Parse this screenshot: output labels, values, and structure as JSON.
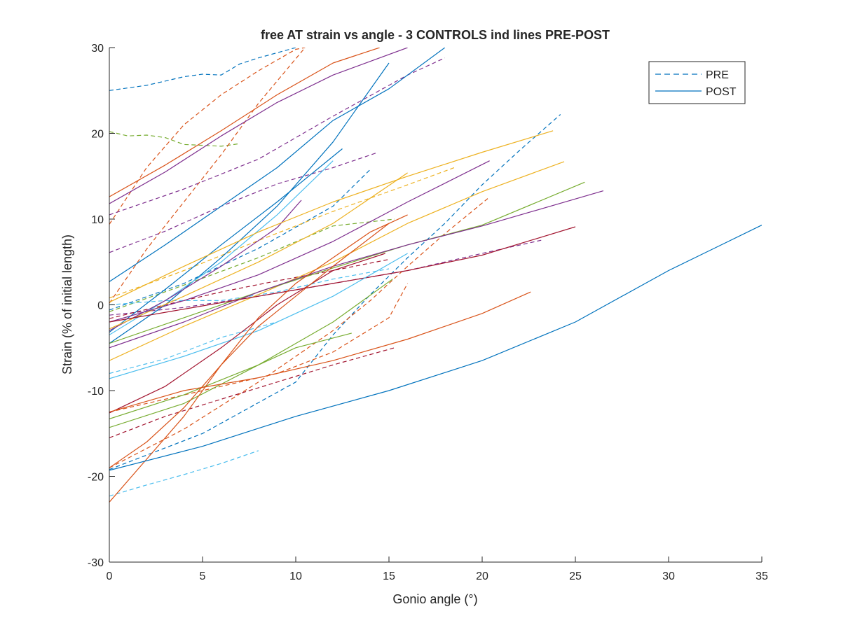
{
  "chart_data": {
    "type": "line",
    "title": "free AT strain vs angle - 3 CONTROLS ind lines PRE-POST",
    "xlabel": "Gonio angle (°)",
    "ylabel": "Strain (% of initial length)",
    "xlim": [
      0,
      35
    ],
    "ylim": [
      -30,
      30
    ],
    "xticks": [
      "0",
      "5",
      "10",
      "15",
      "20",
      "25",
      "30",
      "35"
    ],
    "yticks": [
      "-30",
      "-20",
      "-10",
      "0",
      "10",
      "20",
      "30"
    ],
    "grid": false,
    "legend": {
      "placement": "top-right",
      "entries": [
        {
          "label": "PRE",
          "style": "dashed",
          "color": "#0072BD"
        },
        {
          "label": "POST",
          "style": "solid",
          "color": "#0072BD"
        }
      ]
    },
    "series": [
      {
        "group": "PRE",
        "color": "#0072BD",
        "x": [
          0,
          1,
          2,
          3,
          4,
          5,
          6,
          7,
          8,
          9,
          10
        ],
        "y": [
          25,
          25.3,
          25.6,
          26.1,
          26.6,
          26.9,
          26.8,
          28.1,
          28.8,
          29.4,
          30
        ]
      },
      {
        "group": "PRE",
        "color": "#77AC30",
        "x": [
          0,
          1,
          2,
          3,
          4,
          5,
          6,
          7
        ],
        "y": [
          20.2,
          19.7,
          19.8,
          19.5,
          18.7,
          18.6,
          18.5,
          18.8
        ]
      },
      {
        "group": "PRE",
        "color": "#D95319",
        "x": [
          0,
          2,
          4,
          6,
          8,
          10,
          10.5
        ],
        "y": [
          9.4,
          16,
          21,
          24.5,
          27.3,
          29.8,
          30
        ]
      },
      {
        "group": "PRE",
        "color": "#D95319",
        "x": [
          0,
          2,
          4,
          6,
          8,
          10.5
        ],
        "y": [
          0.2,
          6.5,
          12,
          17.5,
          23.5,
          30
        ]
      },
      {
        "group": "PRE",
        "color": "#7E2F8E",
        "x": [
          0,
          4,
          8,
          12,
          16,
          18
        ],
        "y": [
          10.5,
          13.5,
          17,
          22,
          26.8,
          28.8
        ]
      },
      {
        "group": "PRE",
        "color": "#7E2F8E",
        "x": [
          0,
          3,
          6,
          9,
          12,
          14.3
        ],
        "y": [
          6.1,
          8.6,
          11.5,
          14.1,
          16,
          17.7
        ]
      },
      {
        "group": "PRE",
        "color": "#0072BD",
        "x": [
          0,
          4,
          8,
          12,
          14
        ],
        "y": [
          -0.6,
          2.5,
          6.6,
          11.5,
          15.8
        ]
      },
      {
        "group": "PRE",
        "color": "#0072BD",
        "x": [
          0,
          5,
          10,
          12,
          14,
          16,
          18,
          20,
          22,
          24.2
        ],
        "y": [
          -19.2,
          -15,
          -9,
          -3.5,
          1.2,
          5.5,
          9.5,
          14,
          18,
          22.2
        ]
      },
      {
        "group": "PRE",
        "color": "#EDB120",
        "x": [
          0,
          4,
          8,
          12,
          16,
          18.5
        ],
        "y": [
          0.8,
          4,
          7.5,
          10.9,
          14,
          16
        ]
      },
      {
        "group": "PRE",
        "color": "#77AC30",
        "x": [
          0,
          4,
          8,
          12,
          15.3
        ],
        "y": [
          -0.8,
          2.3,
          5.5,
          9.2,
          10
        ]
      },
      {
        "group": "PRE",
        "color": "#4DBEEE",
        "x": [
          0,
          3,
          6,
          9
        ],
        "y": [
          -8,
          -6.3,
          -3.8,
          -2
        ]
      },
      {
        "group": "PRE",
        "color": "#7E2F8E",
        "x": [
          0,
          4,
          8,
          12,
          16,
          20,
          23.3
        ],
        "y": [
          -1.2,
          -0.3,
          1,
          2.5,
          4,
          6,
          7.6
        ]
      },
      {
        "group": "PRE",
        "color": "#A2142F",
        "x": [
          0,
          3,
          6,
          9,
          12,
          15
        ],
        "y": [
          -1.6,
          0,
          1.5,
          2.8,
          4,
          5.3
        ]
      },
      {
        "group": "PRE",
        "color": "#4DBEEE",
        "x": [
          0,
          3,
          6,
          9,
          12,
          15
        ],
        "y": [
          0,
          0.5,
          0.5,
          1.5,
          3,
          4.2
        ]
      },
      {
        "group": "PRE",
        "color": "#D95319",
        "x": [
          0,
          4,
          8,
          12,
          14,
          16,
          18,
          20.3
        ],
        "y": [
          -19,
          -14.5,
          -9,
          -3,
          0.5,
          4.5,
          8.3,
          12.4
        ]
      },
      {
        "group": "PRE",
        "color": "#D95319",
        "x": [
          0,
          3,
          6,
          9,
          12,
          15,
          16
        ],
        "y": [
          -12.5,
          -11,
          -9.5,
          -8,
          -5.5,
          -1.5,
          2.5
        ]
      },
      {
        "group": "PRE",
        "color": "#A2142F",
        "x": [
          0,
          3,
          6,
          9,
          12,
          15.3
        ],
        "y": [
          -15.5,
          -13,
          -11,
          -9,
          -7,
          -5
        ]
      },
      {
        "group": "PRE",
        "color": "#4DBEEE",
        "x": [
          0,
          2,
          4,
          6,
          8
        ],
        "y": [
          -22.3,
          -21,
          -19.8,
          -18.5,
          -17
        ]
      },
      {
        "group": "POST",
        "color": "#D95319",
        "x": [
          0,
          3,
          6,
          9,
          12,
          14.5
        ],
        "y": [
          12.6,
          16.3,
          20.3,
          24.5,
          28.2,
          30
        ]
      },
      {
        "group": "POST",
        "color": "#7E2F8E",
        "x": [
          0,
          3,
          6,
          9,
          12,
          16
        ],
        "y": [
          11.8,
          15.5,
          19.7,
          23.6,
          26.8,
          30
        ]
      },
      {
        "group": "POST",
        "color": "#0072BD",
        "x": [
          0,
          3,
          6,
          9,
          12,
          15,
          18
        ],
        "y": [
          2.7,
          7,
          11.5,
          16,
          21.5,
          25.2,
          30
        ]
      },
      {
        "group": "POST",
        "color": "#0072BD",
        "x": [
          0,
          3,
          6,
          9,
          12,
          15
        ],
        "y": [
          -4.5,
          0,
          5.5,
          11.5,
          19,
          28.2
        ]
      },
      {
        "group": "POST",
        "color": "#0072BD",
        "x": [
          0,
          3,
          6,
          9,
          12.5
        ],
        "y": [
          -3.2,
          1.8,
          7,
          12,
          18.2
        ]
      },
      {
        "group": "POST",
        "color": "#4DBEEE",
        "x": [
          0,
          3,
          6,
          9,
          12
        ],
        "y": [
          -3.5,
          0.5,
          5,
          10.5,
          16.8
        ]
      },
      {
        "group": "POST",
        "color": "#7E2F8E",
        "x": [
          0,
          3,
          6,
          9,
          10.3
        ],
        "y": [
          -3,
          0.5,
          4.5,
          9,
          12.2
        ]
      },
      {
        "group": "POST",
        "color": "#EDB120",
        "x": [
          0,
          4,
          8,
          12,
          16,
          20,
          23.8
        ],
        "y": [
          0.3,
          4.5,
          8.5,
          12,
          15,
          17.8,
          20.3
        ]
      },
      {
        "group": "POST",
        "color": "#EDB120",
        "x": [
          0,
          4,
          8,
          12,
          16
        ],
        "y": [
          -2.8,
          1,
          5,
          9.5,
          15.4
        ]
      },
      {
        "group": "POST",
        "color": "#EDB120",
        "x": [
          0,
          4,
          8,
          12,
          16,
          20,
          24.4
        ],
        "y": [
          -6.5,
          -2.5,
          1.2,
          5,
          9.5,
          13.2,
          16.7
        ]
      },
      {
        "group": "POST",
        "color": "#7E2F8E",
        "x": [
          0,
          4,
          8,
          12,
          16,
          20.4
        ],
        "y": [
          -2,
          0.5,
          3.5,
          7.4,
          12,
          16.8
        ]
      },
      {
        "group": "POST",
        "color": "#77AC30",
        "x": [
          0,
          4,
          8,
          12,
          16,
          20,
          25.5
        ],
        "y": [
          -4.5,
          -1.5,
          1.5,
          4.3,
          7,
          9.3,
          14.3
        ]
      },
      {
        "group": "POST",
        "color": "#7E2F8E",
        "x": [
          0,
          4,
          8,
          12,
          16,
          20,
          26.5
        ],
        "y": [
          -5,
          -2,
          1.5,
          4.5,
          7,
          9.2,
          13.3
        ]
      },
      {
        "group": "POST",
        "color": "#A2142F",
        "x": [
          0,
          4,
          8,
          12,
          16,
          20,
          25
        ],
        "y": [
          -2,
          -0.5,
          1,
          2.5,
          4,
          5.8,
          9.1
        ]
      },
      {
        "group": "POST",
        "color": "#4DBEEE",
        "x": [
          0,
          4,
          8,
          12,
          16
        ],
        "y": [
          -8.6,
          -6,
          -3,
          1,
          6
        ]
      },
      {
        "group": "POST",
        "color": "#77AC30",
        "x": [
          0,
          4,
          8,
          12,
          15.2
        ],
        "y": [
          -14.3,
          -11.5,
          -7,
          -2,
          3
        ]
      },
      {
        "group": "POST",
        "color": "#77AC30",
        "x": [
          0,
          4,
          8,
          10,
          13
        ],
        "y": [
          -13.3,
          -10.5,
          -7,
          -5,
          -3.3
        ]
      },
      {
        "group": "POST",
        "color": "#A2142F",
        "x": [
          0,
          3,
          6,
          9,
          12,
          14.8
        ],
        "y": [
          -12.6,
          -9.5,
          -5,
          0,
          4,
          6
        ]
      },
      {
        "group": "POST",
        "color": "#D95319",
        "x": [
          0,
          2,
          4,
          6,
          8,
          10,
          12,
          15
        ],
        "y": [
          -19,
          -16,
          -12,
          -7,
          -2.5,
          1,
          4.5,
          9.5
        ]
      },
      {
        "group": "POST",
        "color": "#D95319",
        "x": [
          0,
          2,
          4,
          6,
          8,
          10,
          12,
          14,
          16
        ],
        "y": [
          -23,
          -18,
          -13,
          -7,
          -1.5,
          2.5,
          5.5,
          8.5,
          10.5
        ]
      },
      {
        "group": "POST",
        "color": "#D95319",
        "x": [
          0,
          4,
          8,
          12,
          16,
          20,
          22.6
        ],
        "y": [
          -12.5,
          -10,
          -8.5,
          -6.5,
          -4,
          -1,
          1.5
        ]
      },
      {
        "group": "POST",
        "color": "#0072BD",
        "x": [
          0,
          5,
          10,
          15,
          20,
          25,
          30,
          35
        ],
        "y": [
          -19.3,
          -16.5,
          -13,
          -10,
          -6.5,
          -2,
          4,
          9.3
        ]
      }
    ]
  }
}
